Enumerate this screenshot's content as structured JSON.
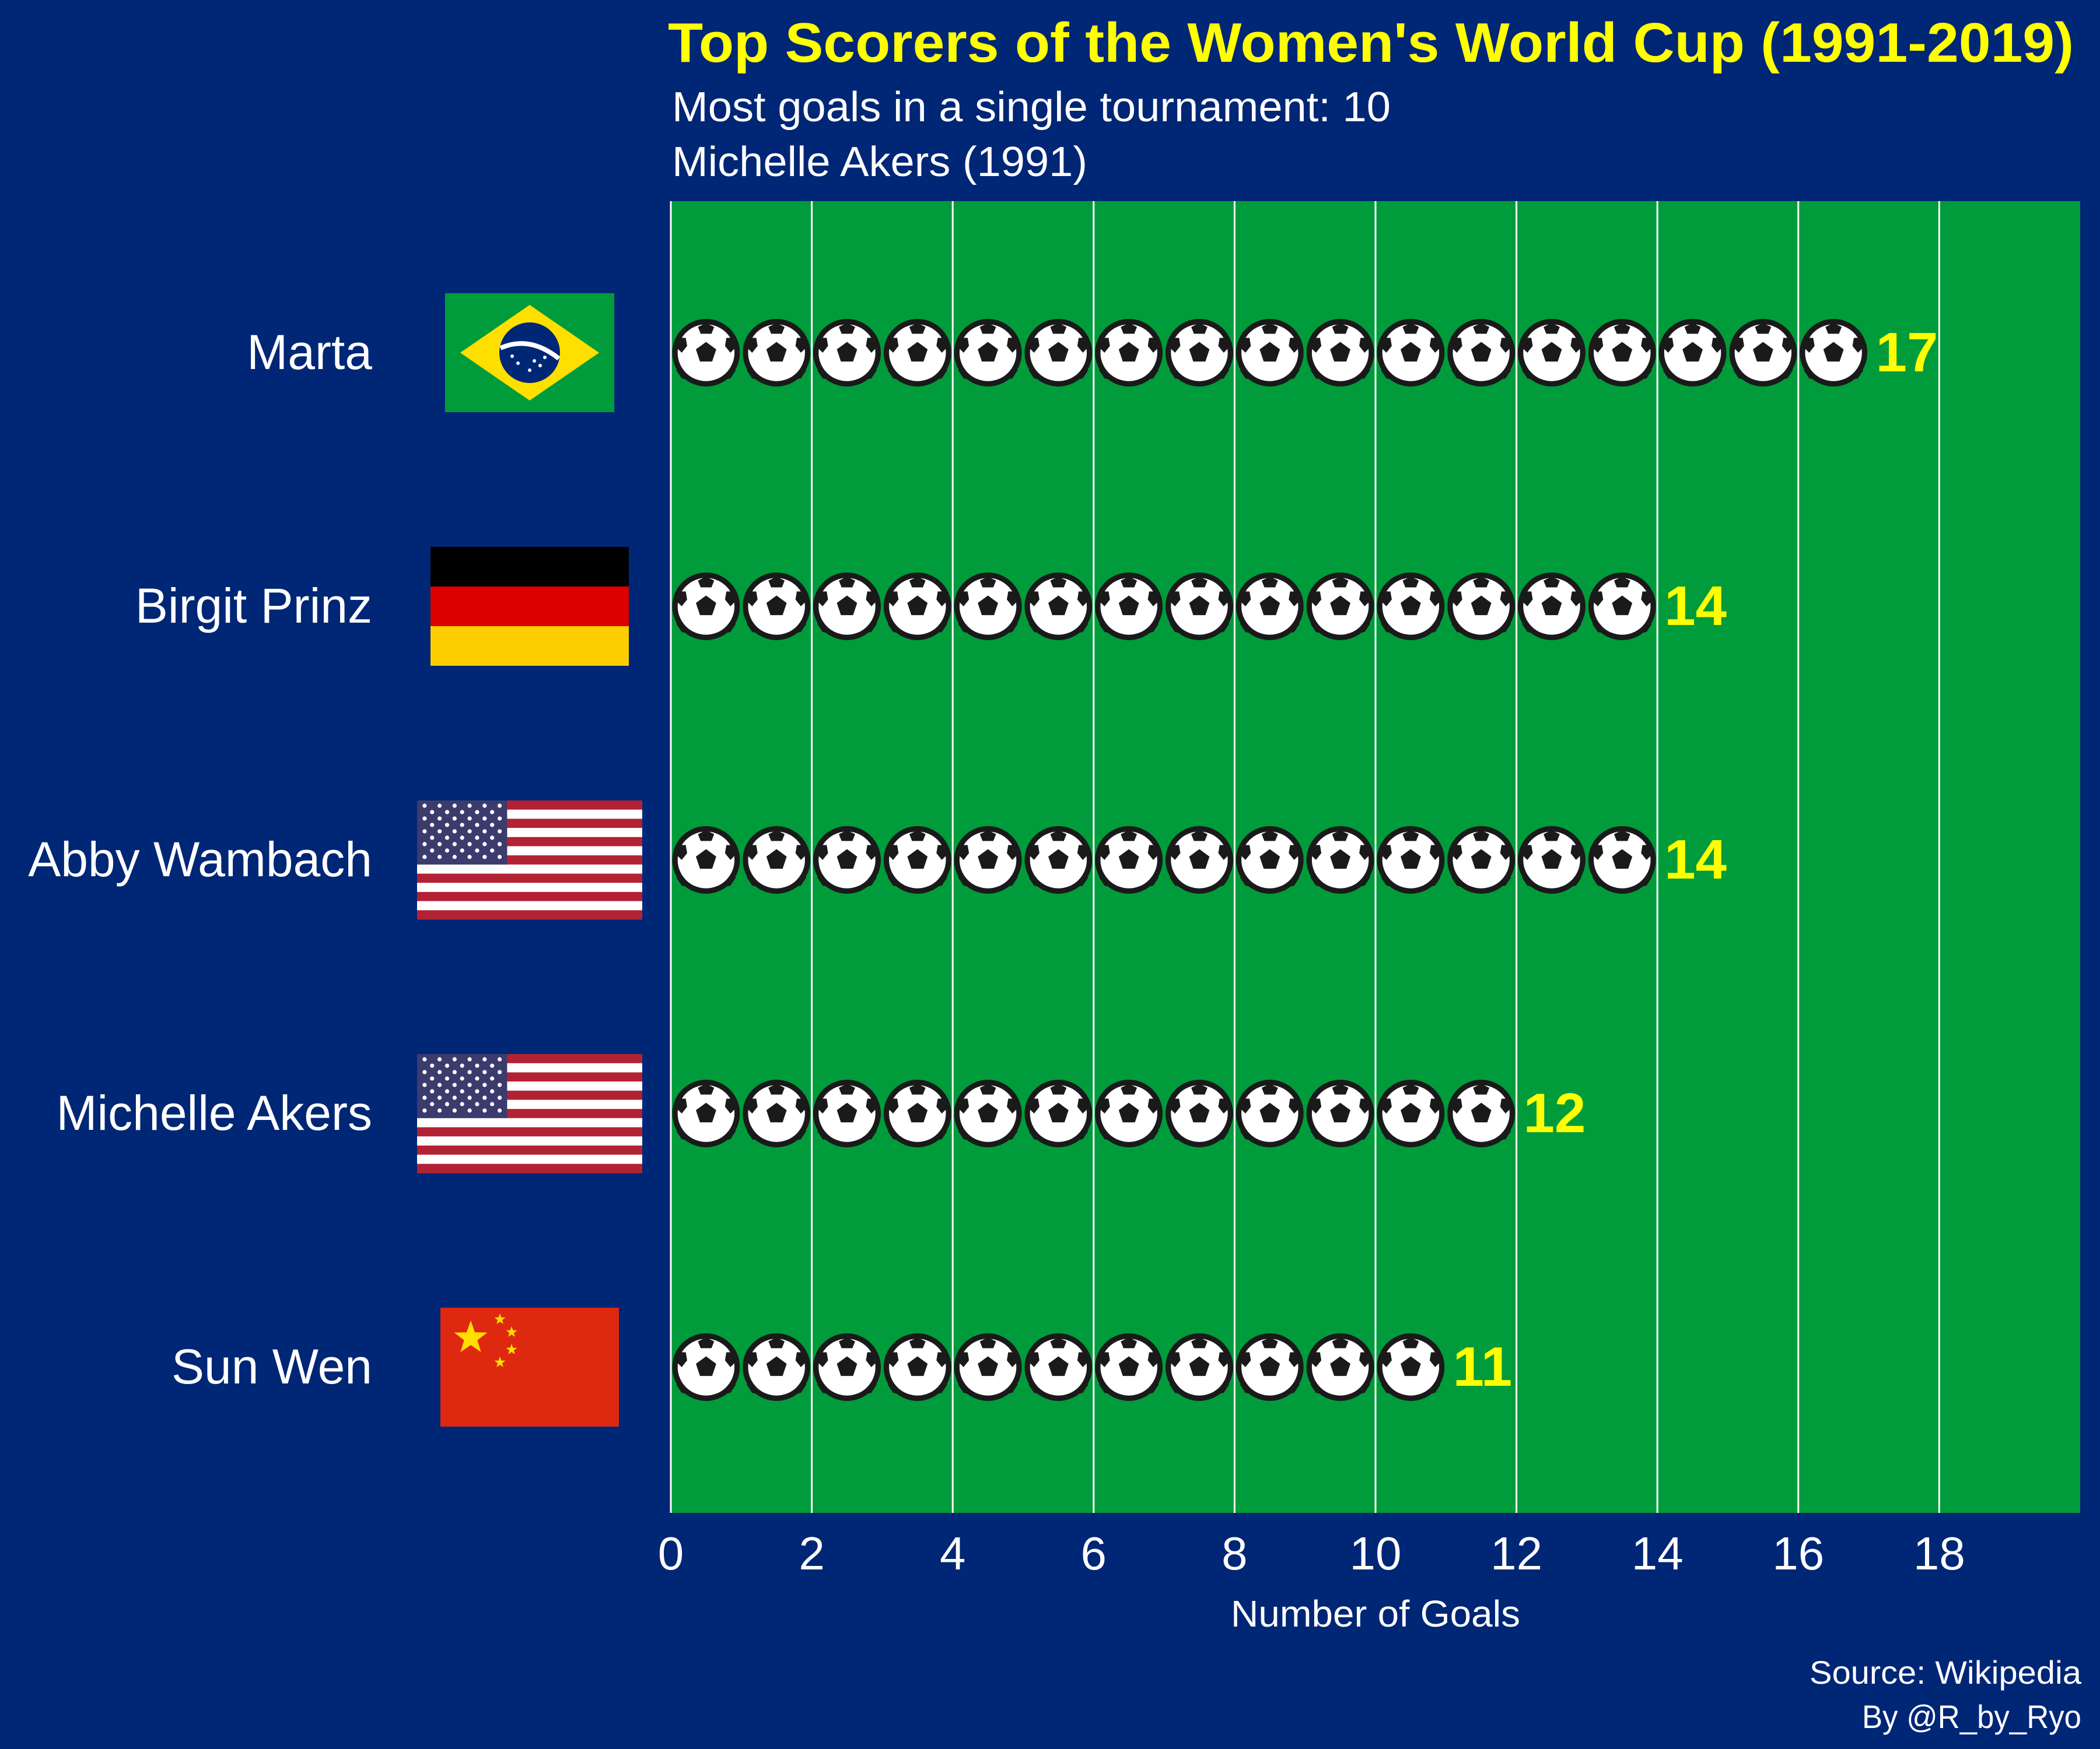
{
  "chart_data": {
    "type": "bar",
    "title": "Top Scorers of the Women's World Cup (1991-2019)",
    "subtitle": [
      "Most goals in a single tournament: 10",
      "Michelle Akers (1991)"
    ],
    "xlabel": "Number of Goals",
    "ylabel": "",
    "xlim": [
      0,
      20
    ],
    "x_ticks": [
      0,
      2,
      4,
      6,
      8,
      10,
      12,
      14,
      16,
      18
    ],
    "grid": true,
    "categories": [
      "Marta",
      "Birgit Prinz",
      "Abby Wambach",
      "Michelle Akers",
      "Sun Wen"
    ],
    "flags": [
      "brazil-flag-icon",
      "germany-flag-icon",
      "usa-flag-icon",
      "usa-flag-icon",
      "china-flag-icon"
    ],
    "values": [
      17,
      14,
      14,
      12,
      11
    ],
    "mark": "soccer-ball-icon",
    "caption": [
      "Source: Wikipedia",
      "By @R_by_Ryo"
    ]
  },
  "colors": {
    "background": "#002676",
    "panel": "#009C3B",
    "title": "#FFFF00",
    "value_label": "#FFFF00",
    "text": "#FFFFFF",
    "gridline": "#FFFFFF"
  }
}
